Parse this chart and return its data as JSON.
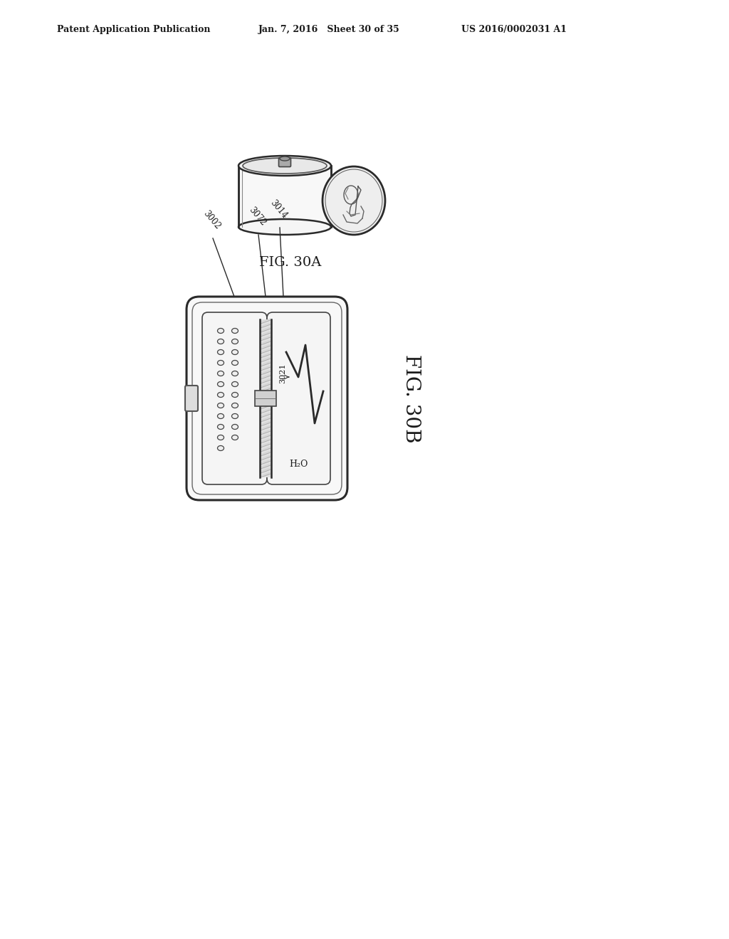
{
  "background_color": "#ffffff",
  "header_left": "Patent Application Publication",
  "header_center": "Jan. 7, 2016   Sheet 30 of 35",
  "header_right": "US 2016/0002031 A1",
  "fig30a_label": "FIG. 30A",
  "fig30b_label": "FIG. 30B",
  "label_3002": "3002",
  "label_3072": "3072",
  "label_3014": "3014",
  "label_3021": "3021",
  "label_h2o": "H₂O",
  "text_color": "#1a1a1a",
  "line_color": "#2a2a2a"
}
